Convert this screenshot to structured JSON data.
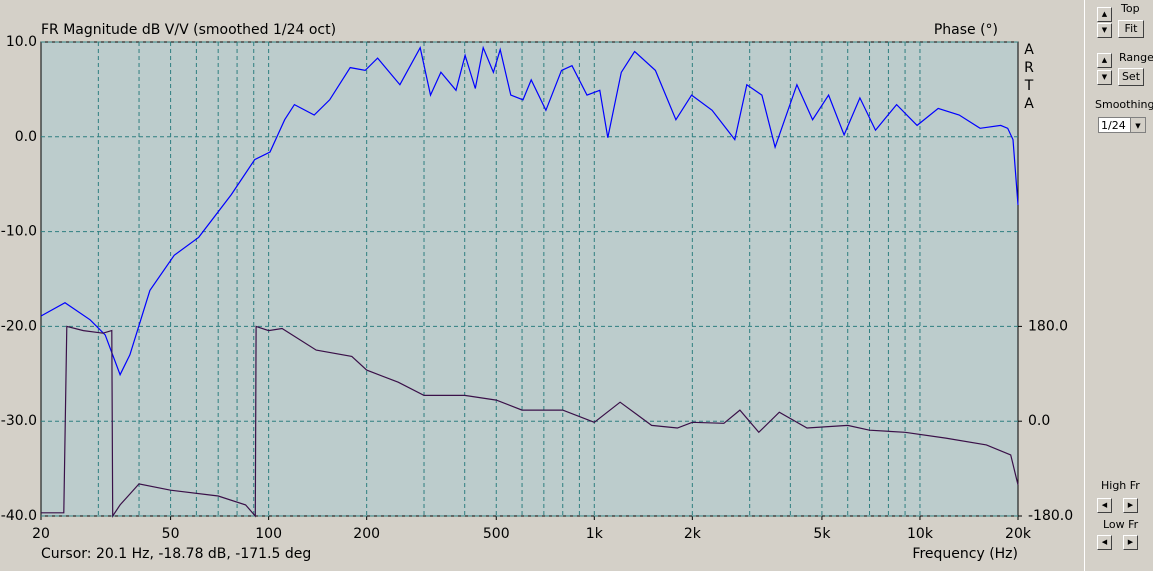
{
  "chart_data": {
    "type": "line",
    "title": "FR Magnitude dB V/V (smoothed 1/24 oct)",
    "y2_label": "Phase (°)",
    "x_label": "Frequency (Hz)",
    "watermark": "ARTA",
    "cursor": "Cursor: 20.1 Hz, -18.78 dB, -171.5 deg",
    "xscale": "log",
    "xlim": [
      20,
      20000
    ],
    "xticks": [
      20,
      50,
      100,
      200,
      500,
      {
        "value": 1000,
        "label": "1k"
      },
      {
        "value": 2000,
        "label": "2k"
      },
      {
        "value": 5000,
        "label": "5k"
      },
      {
        "value": 10000,
        "label": "10k"
      },
      {
        "value": 20000,
        "label": "20k"
      }
    ],
    "ylim": [
      -40,
      10
    ],
    "yticks": [
      {
        "value": -40,
        "label": "-40.0"
      },
      {
        "value": -30,
        "label": "-30.0"
      },
      {
        "value": -20,
        "label": "-20.0"
      },
      {
        "value": -10,
        "label": "-10.0"
      },
      {
        "value": 0,
        "label": "0.0"
      },
      {
        "value": 10,
        "label": "10.0"
      }
    ],
    "y2lim": [
      -180,
      720
    ],
    "y2ticks": [
      {
        "value": -180,
        "label": "-180.0"
      },
      {
        "value": 0,
        "label": "0.0"
      },
      {
        "value": 180,
        "label": "180.0"
      }
    ],
    "grid": true,
    "series": [
      {
        "color": "#0000ff",
        "x": [
          20,
          23.7,
          28.3,
          31.5,
          35,
          37.5,
          43.2,
          51.3,
          61,
          76.8,
          90.6,
          101,
          112,
          120,
          138,
          154,
          178,
          198,
          216,
          253,
          292,
          314,
          338,
          376,
          401,
          431,
          456,
          490,
          514,
          554,
          604,
          640,
          710,
          793,
          854,
          950,
          1040,
          1100,
          1210,
          1330,
          1540,
          1780,
          1990,
          2300,
          2700,
          2940,
          3270,
          3590,
          4190,
          4680,
          5240,
          5850,
          6540,
          7300,
          8480,
          9800,
          11380,
          13200,
          15300,
          17700,
          18600,
          19300,
          20000
        ],
        "values": [
          -18.9,
          -17.5,
          -19.3,
          -20.9,
          -25.1,
          -23.0,
          -16.2,
          -12.5,
          -10.6,
          -6.1,
          -2.4,
          -1.6,
          1.8,
          3.4,
          2.3,
          3.9,
          7.3,
          7.0,
          8.3,
          5.5,
          9.4,
          4.4,
          6.8,
          4.9,
          8.6,
          5.1,
          9.4,
          6.8,
          9.2,
          4.4,
          3.9,
          6.0,
          2.8,
          7.0,
          7.5,
          4.4,
          4.9,
          -0.1,
          6.8,
          9.0,
          7.0,
          1.8,
          4.4,
          2.8,
          -0.3,
          5.5,
          4.4,
          -1.1,
          5.5,
          1.8,
          4.4,
          0.2,
          4.1,
          0.7,
          3.4,
          1.2,
          3.0,
          2.3,
          0.9,
          1.2,
          0.9,
          -0.3,
          -7.2
        ]
      },
      {
        "color": "#3a1048",
        "axis": "y2",
        "x": [
          20,
          23.5,
          24,
          27,
          31,
          33,
          33.2,
          35,
          40,
          50,
          70,
          85,
          91,
          91.5,
          100,
          110,
          140,
          180,
          200,
          250,
          300,
          400,
          500,
          600,
          700,
          800,
          1000,
          1200,
          1500,
          1800,
          2000,
          2500,
          2800,
          3200,
          3700,
          4500,
          6000,
          7000,
          9000,
          12000,
          16000,
          19000,
          20000
        ],
        "values": [
          -174,
          -174,
          180,
          172,
          167,
          172,
          -180,
          -159,
          -119,
          -131,
          -142,
          -159,
          -180,
          180,
          172,
          176,
          135,
          123,
          97,
          74,
          49,
          49,
          40,
          21,
          21,
          21,
          -2,
          36,
          -8,
          -13,
          -2,
          -4,
          21,
          -21,
          17,
          -13,
          -8,
          -17,
          -21,
          -32,
          -45,
          -64,
          -121
        ]
      }
    ]
  },
  "panel": {
    "top": "Top",
    "fit": "Fit",
    "range": "Range",
    "set": "Set",
    "smoothing": "Smoothing",
    "smoothing_value": "1/24",
    "high_fr": "High Fr",
    "low_fr": "Low Fr"
  }
}
